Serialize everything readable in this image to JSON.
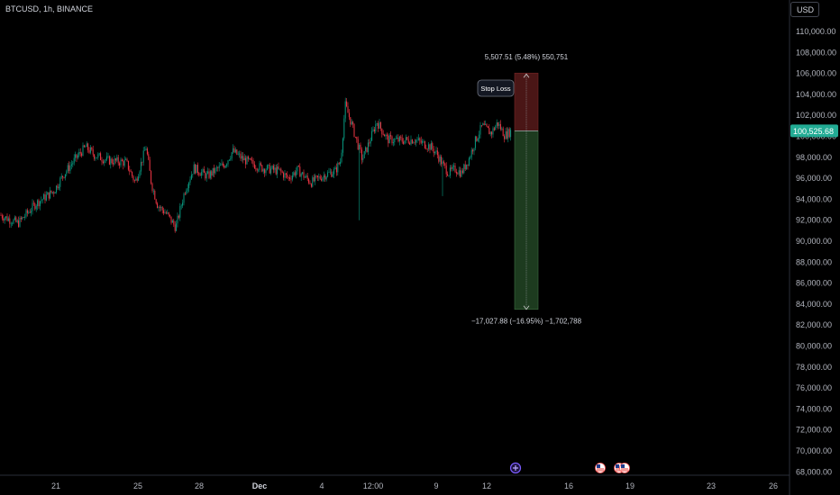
{
  "header": {
    "symbol": "BTCUSD, 1h, BINANCE",
    "currency": "USD"
  },
  "price_axis": {
    "ticks": [
      "110,000.00",
      "108,000.00",
      "106,000.00",
      "104,000.00",
      "102,000.00",
      "100,000.00",
      "98,000.00",
      "96,000.00",
      "94,000.00",
      "92,000.00",
      "90,000.00",
      "88,000.00",
      "86,000.00",
      "84,000.00",
      "82,000.00",
      "80,000.00",
      "78,000.00",
      "76,000.00",
      "74,000.00",
      "72,000.00",
      "70,000.00",
      "68,000.00"
    ],
    "current_price": "100,525.68"
  },
  "time_axis": {
    "labels": [
      "21",
      "25",
      "28",
      "Dec",
      "4",
      "12:00",
      "9",
      "12",
      "16",
      "19",
      "23",
      "26"
    ]
  },
  "position_tool": {
    "profit_label": "5,507.51 (5.48%) 550,751",
    "loss_label": "−17,027.88 (−16.95%) −1,702,788",
    "tooltip": "Stop Loss",
    "entry": 100525.68,
    "upper": 106033,
    "lower": 83498
  },
  "colors": {
    "up": "#089981",
    "down": "#f23645",
    "price_tag": "#22ab94",
    "upper_zone": "#4a1616",
    "lower_zone": "#1d3b1f"
  },
  "event_icons": [
    "event-icon",
    "us-flag-icon",
    "us-flag-icon"
  ],
  "chart_data": {
    "type": "candlestick",
    "title": "BTCUSD, 1h, BINANCE",
    "ylim": [
      67500,
      111500
    ],
    "close_path": [
      [
        0,
        92500
      ],
      [
        20,
        91700
      ],
      [
        40,
        93600
      ],
      [
        60,
        94800
      ],
      [
        70,
        96300
      ],
      [
        85,
        98000
      ],
      [
        95,
        99000
      ],
      [
        105,
        98200
      ],
      [
        120,
        97700
      ],
      [
        140,
        97500
      ],
      [
        150,
        95600
      ],
      [
        162,
        99000
      ],
      [
        168,
        95500
      ],
      [
        175,
        93400
      ],
      [
        185,
        92600
      ],
      [
        195,
        91300
      ],
      [
        205,
        94800
      ],
      [
        215,
        97000
      ],
      [
        230,
        96200
      ],
      [
        250,
        97400
      ],
      [
        258,
        98600
      ],
      [
        270,
        97800
      ],
      [
        290,
        97000
      ],
      [
        310,
        96700
      ],
      [
        320,
        96000
      ],
      [
        330,
        96800
      ],
      [
        345,
        95600
      ],
      [
        360,
        96300
      ],
      [
        372,
        96700
      ],
      [
        378,
        97700
      ],
      [
        383,
        103000
      ],
      [
        390,
        101200
      ],
      [
        396,
        99500
      ],
      [
        402,
        97800
      ],
      [
        410,
        99500
      ],
      [
        418,
        101400
      ],
      [
        430,
        99700
      ],
      [
        445,
        99600
      ],
      [
        460,
        99700
      ],
      [
        470,
        99300
      ],
      [
        478,
        99000
      ],
      [
        485,
        98300
      ],
      [
        492,
        97200
      ],
      [
        498,
        96500
      ],
      [
        505,
        96900
      ],
      [
        512,
        96500
      ],
      [
        520,
        97800
      ],
      [
        527,
        99500
      ],
      [
        535,
        101000
      ],
      [
        545,
        100300
      ],
      [
        552,
        101300
      ],
      [
        560,
        100100
      ],
      [
        567,
        100500
      ]
    ]
  }
}
